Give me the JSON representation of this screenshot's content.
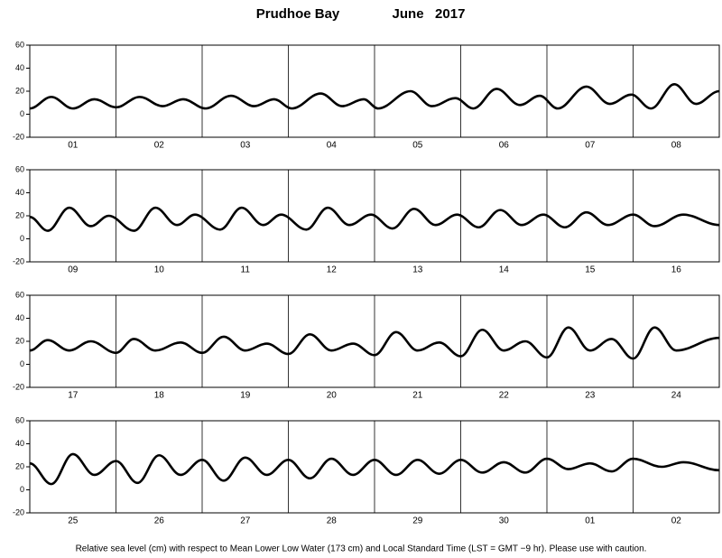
{
  "title": "Prudhoe Bay",
  "subtitle": "June   2017",
  "note": "Relative sea level (cm) with respect to Mean Lower Low Water (173 cm) and Local Standard Time (LST = GMT −9 hr). Please use with caution.",
  "chart_data": [
    {
      "type": "line",
      "categories": [
        "01",
        "02",
        "03",
        "04",
        "05",
        "06",
        "07",
        "08"
      ],
      "xlim": [
        0,
        192
      ],
      "ylim": [
        -20,
        60
      ],
      "yticks": [
        -20,
        0,
        20,
        40,
        60
      ],
      "x": [
        0,
        6,
        12,
        18,
        24,
        30.6,
        37,
        42.7,
        49,
        56,
        62.5,
        68,
        73,
        81,
        87,
        93,
        97,
        106,
        112,
        118.5,
        123.5,
        130,
        136.5,
        142,
        147,
        155,
        161.5,
        167.5,
        173,
        179.5,
        185.5,
        192
      ],
      "series": [
        {
          "color": "#000000",
          "values": [
            5,
            15,
            5,
            13,
            6,
            15,
            7,
            13,
            5,
            16,
            7,
            13,
            5,
            18,
            7,
            13,
            5,
            20,
            7,
            14,
            5,
            22,
            8,
            16,
            5,
            24,
            9,
            17,
            5,
            26,
            9,
            20
          ]
        }
      ]
    },
    {
      "type": "line",
      "categories": [
        "09",
        "10",
        "11",
        "12",
        "13",
        "14",
        "15",
        "16"
      ],
      "xlim": [
        0,
        192
      ],
      "ylim": [
        -20,
        60
      ],
      "yticks": [
        -20,
        0,
        20,
        40,
        60
      ],
      "x": [
        0,
        5,
        11,
        17,
        22,
        29,
        35,
        41,
        46,
        53,
        59,
        65,
        70,
        77,
        83,
        89,
        95,
        101,
        107,
        113,
        119,
        125,
        131,
        137,
        143,
        149,
        155,
        161,
        168,
        174,
        182,
        192
      ],
      "series": [
        {
          "color": "#000000",
          "values": [
            19,
            7,
            27,
            11,
            20,
            7,
            27,
            12,
            21,
            8,
            27,
            12,
            21,
            8,
            27,
            12,
            21,
            9,
            26,
            12,
            21,
            10,
            25,
            12,
            21,
            10,
            23,
            12,
            21,
            11,
            21,
            12
          ]
        }
      ]
    },
    {
      "type": "line",
      "categories": [
        "17",
        "18",
        "19",
        "20",
        "21",
        "22",
        "23",
        "24"
      ],
      "xlim": [
        0,
        192
      ],
      "ylim": [
        -20,
        60
      ],
      "yticks": [
        -20,
        0,
        20,
        40,
        60
      ],
      "x": [
        0,
        5,
        11,
        17,
        24,
        29,
        35,
        42,
        48,
        54,
        60,
        66,
        72,
        78,
        84,
        90,
        96,
        102,
        108,
        114,
        120,
        126,
        132,
        138,
        144,
        150,
        156,
        162,
        168,
        174,
        180,
        192
      ],
      "series": [
        {
          "color": "#000000",
          "values": [
            12,
            21,
            12,
            20,
            10,
            22,
            12,
            19,
            10,
            24,
            12,
            18,
            9,
            26,
            12,
            18,
            8,
            28,
            12,
            19,
            7,
            30,
            12,
            20,
            6,
            32,
            12,
            22,
            5,
            32,
            12,
            23
          ]
        }
      ]
    },
    {
      "type": "line",
      "categories": [
        "25",
        "26",
        "27",
        "28",
        "29",
        "30",
        "01",
        "02"
      ],
      "xlim": [
        0,
        192
      ],
      "ylim": [
        -20,
        60
      ],
      "yticks": [
        -20,
        0,
        20,
        40,
        60
      ],
      "x": [
        0,
        6,
        12,
        18,
        24,
        30,
        36,
        42,
        48,
        54,
        60,
        66,
        72,
        78,
        84,
        90,
        96,
        102,
        108,
        114,
        120,
        126,
        132,
        138,
        144,
        150,
        156,
        162,
        168,
        176,
        182,
        192
      ],
      "series": [
        {
          "color": "#000000",
          "values": [
            23,
            5,
            31,
            13,
            25,
            6,
            30,
            13,
            26,
            8,
            28,
            13,
            26,
            10,
            27,
            13,
            26,
            13,
            26,
            14,
            26,
            15,
            24,
            15,
            27,
            18,
            23,
            16,
            27,
            20,
            24,
            17
          ]
        }
      ]
    }
  ]
}
